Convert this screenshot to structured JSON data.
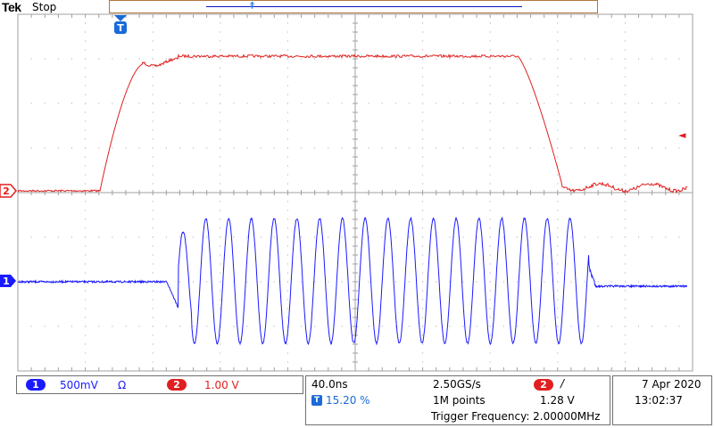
{
  "header": {
    "brand": "Tek",
    "run_state": "Stop"
  },
  "markers": {
    "trigger_position": "T",
    "ch2_ground": "2",
    "ch1_ground": "1",
    "trigger_level_arrow": "◄"
  },
  "channels": {
    "ch1": {
      "number": "1",
      "scale": "500mV",
      "coupling": "Ω",
      "color": "#1a1aff"
    },
    "ch2": {
      "number": "2",
      "scale": "1.00 V",
      "color": "#e02020"
    }
  },
  "timebase": {
    "time_per_div": "40.0ns",
    "sample_rate": "2.50GS/s",
    "trigger_icon": "T",
    "trigger_position_pct": "15.20 %",
    "record_length": "1M points"
  },
  "trigger": {
    "source": "2",
    "slope": "/",
    "level": "1.28 V",
    "frequency": "Trigger Frequency: 2.00000MHz"
  },
  "datetime": {
    "date": "7 Apr  2020",
    "time": "13:02:37"
  },
  "colors": {
    "grid": "#a0a0a0",
    "ch1": "#1a1aff",
    "ch2": "#e02020",
    "trigger": "#1a6bd8"
  }
}
